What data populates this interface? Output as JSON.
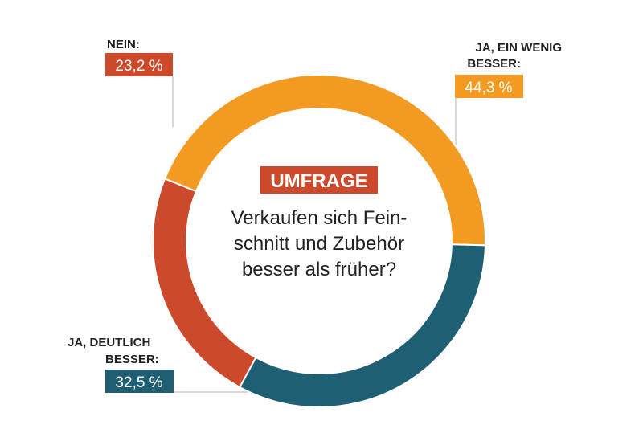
{
  "chart_data": {
    "type": "pie",
    "variant": "donut",
    "badge": "UMFRAGE",
    "question_lines": [
      "Verkaufen sich Fein-",
      "schnitt und Zubehör",
      "besser als früher?"
    ],
    "slices": [
      {
        "id": "ja-wenig",
        "label_lines": [
          "JA, EIN WENIG",
          "BESSER:"
        ],
        "value": 44.3,
        "value_label": "44,3 %",
        "color": "#f39a22"
      },
      {
        "id": "ja-deutlich",
        "label_lines": [
          "JA, DEUTLICH",
          "BESSER:"
        ],
        "value": 32.5,
        "value_label": "32,5 %",
        "color": "#1f5f73"
      },
      {
        "id": "nein",
        "label_lines": [
          "NEIN:"
        ],
        "value": 23.2,
        "value_label": "23,2 %",
        "color": "#cc4a2b"
      }
    ],
    "colors": {
      "badge": "#cc4a2b",
      "text": "#222222",
      "leader": "#b5b5b5"
    }
  }
}
